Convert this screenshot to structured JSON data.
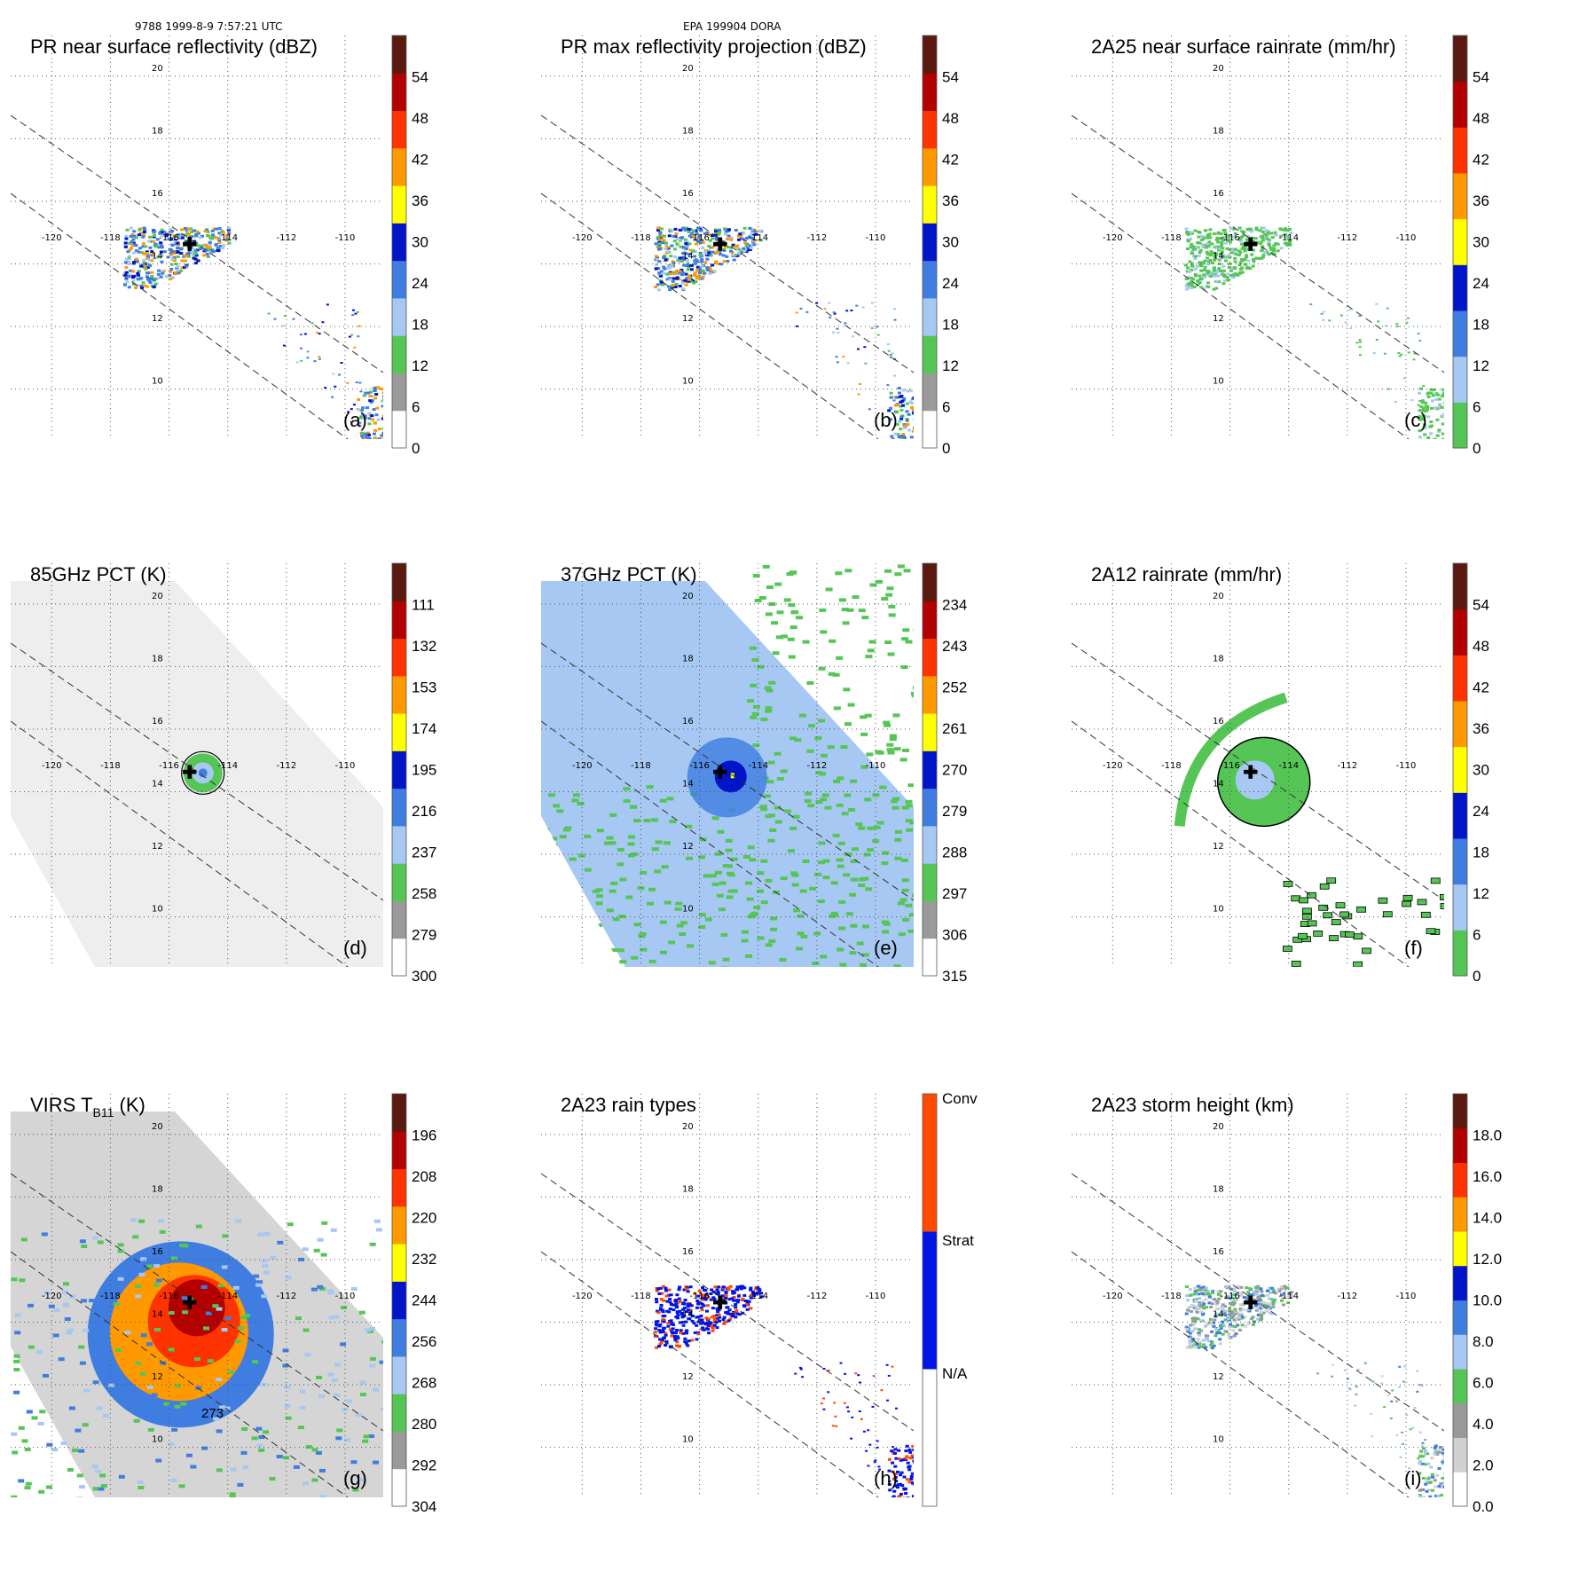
{
  "header": {
    "left": "9788 1999-8-9 7:57:21 UTC",
    "center": "EPA 199904 DORA"
  },
  "map_axes": {
    "lon_ticks": [
      "-120",
      "-118",
      "-116",
      "-114",
      "-112",
      "-110"
    ],
    "lat_ticks": [
      "20",
      "18",
      "16",
      "14",
      "12",
      "10"
    ],
    "storm_center": {
      "lon": -115.3,
      "lat": 14.6
    }
  },
  "chart_data": [
    {
      "type": "heatmap",
      "panel": "a",
      "label": "(a)",
      "title": "PR near surface reflectivity (dBZ)",
      "colorbar": {
        "ticks": [
          "0",
          "6",
          "12",
          "18",
          "24",
          "30",
          "36",
          "42",
          "48",
          "54"
        ],
        "ramp": [
          "#ffffff",
          "#9a9a9a",
          "#55c655",
          "#a6c8f2",
          "#3f7de0",
          "#0014c8",
          "#ffff00",
          "#ff9900",
          "#ff3300",
          "#b30000",
          "#5a1a10"
        ]
      },
      "field": "swath-narrow"
    },
    {
      "type": "heatmap",
      "panel": "b",
      "label": "(b)",
      "title": "PR max reflectivity projection (dBZ)",
      "colorbar": {
        "ticks": [
          "0",
          "6",
          "12",
          "18",
          "24",
          "30",
          "36",
          "42",
          "48",
          "54"
        ],
        "ramp": [
          "#ffffff",
          "#9a9a9a",
          "#55c655",
          "#a6c8f2",
          "#3f7de0",
          "#0014c8",
          "#ffff00",
          "#ff9900",
          "#ff3300",
          "#b30000",
          "#5a1a10"
        ]
      },
      "field": "swath-narrow"
    },
    {
      "type": "heatmap",
      "panel": "c",
      "label": "(c)",
      "title": "2A25 near surface rainrate (mm/hr)",
      "colorbar": {
        "ticks": [
          "0",
          "6",
          "12",
          "18",
          "24",
          "30",
          "36",
          "42",
          "48",
          "54"
        ],
        "ramp": [
          "#55c655",
          "#a6c8f2",
          "#3f7de0",
          "#0014c8",
          "#ffff00",
          "#ff9900",
          "#ff3300",
          "#b30000",
          "#5a1a10"
        ]
      },
      "field": "swath-narrow"
    },
    {
      "type": "heatmap",
      "panel": "d",
      "label": "(d)",
      "title": "85GHz PCT (K)",
      "colorbar": {
        "ticks": [
          "300",
          "279",
          "258",
          "237",
          "216",
          "195",
          "174",
          "153",
          "132",
          "111"
        ],
        "ramp": [
          "#ffffff",
          "#9a9a9a",
          "#55c655",
          "#a6c8f2",
          "#3f7de0",
          "#0014c8",
          "#ffff00",
          "#ff9900",
          "#ff3300",
          "#b30000",
          "#5a1a10"
        ]
      },
      "field": "swath-wide"
    },
    {
      "type": "heatmap",
      "panel": "e",
      "label": "(e)",
      "title": "37GHz PCT (K)",
      "colorbar": {
        "ticks": [
          "315",
          "306",
          "297",
          "288",
          "279",
          "270",
          "261",
          "252",
          "243",
          "234"
        ],
        "ramp": [
          "#ffffff",
          "#9a9a9a",
          "#55c655",
          "#a6c8f2",
          "#3f7de0",
          "#0014c8",
          "#ffff00",
          "#ff9900",
          "#ff3300",
          "#b30000",
          "#5a1a10"
        ]
      },
      "field": "swath-wide"
    },
    {
      "type": "heatmap",
      "panel": "f",
      "label": "(f)",
      "title": "2A12 rainrate (mm/hr)",
      "colorbar": {
        "ticks": [
          "0",
          "6",
          "12",
          "18",
          "24",
          "30",
          "36",
          "42",
          "48",
          "54"
        ],
        "ramp": [
          "#55c655",
          "#a6c8f2",
          "#3f7de0",
          "#0014c8",
          "#ffff00",
          "#ff9900",
          "#ff3300",
          "#b30000",
          "#5a1a10"
        ]
      },
      "field": "swath-wide"
    },
    {
      "type": "heatmap",
      "panel": "g",
      "label": "(g)",
      "title_main": "VIRS T",
      "title_sub": "B11",
      "title_tail": " (K)",
      "contour_label": "273",
      "colorbar": {
        "ticks": [
          "304",
          "292",
          "280",
          "268",
          "256",
          "244",
          "232",
          "220",
          "208",
          "196"
        ],
        "ramp": [
          "#ffffff",
          "#9a9a9a",
          "#55c655",
          "#a6c8f2",
          "#3f7de0",
          "#0014c8",
          "#ffff00",
          "#ff9900",
          "#ff3300",
          "#b30000",
          "#5a1a10"
        ]
      },
      "field": "swath-wide"
    },
    {
      "type": "heatmap",
      "panel": "h",
      "label": "(h)",
      "title": "2A23 rain types",
      "colorbar": {
        "ticks": [
          "N/A",
          "Strat",
          "Conv"
        ],
        "ramp": [
          "#ffffff",
          "#0014e6",
          "#ff4a00"
        ]
      },
      "field": "swath-narrow"
    },
    {
      "type": "heatmap",
      "panel": "i",
      "label": "(i)",
      "title": "2A23 storm height (km)",
      "colorbar": {
        "ticks": [
          "0.0",
          "2.0",
          "4.0",
          "6.0",
          "8.0",
          "10.0",
          "12.0",
          "14.0",
          "16.0",
          "18.0"
        ],
        "ramp": [
          "#ffffff",
          "#d0d0d0",
          "#9a9a9a",
          "#55c655",
          "#a6c8f2",
          "#3f7de0",
          "#0014c8",
          "#ffff00",
          "#ff9900",
          "#ff3300",
          "#b30000",
          "#5a1a10"
        ]
      },
      "field": "swath-narrow"
    }
  ]
}
